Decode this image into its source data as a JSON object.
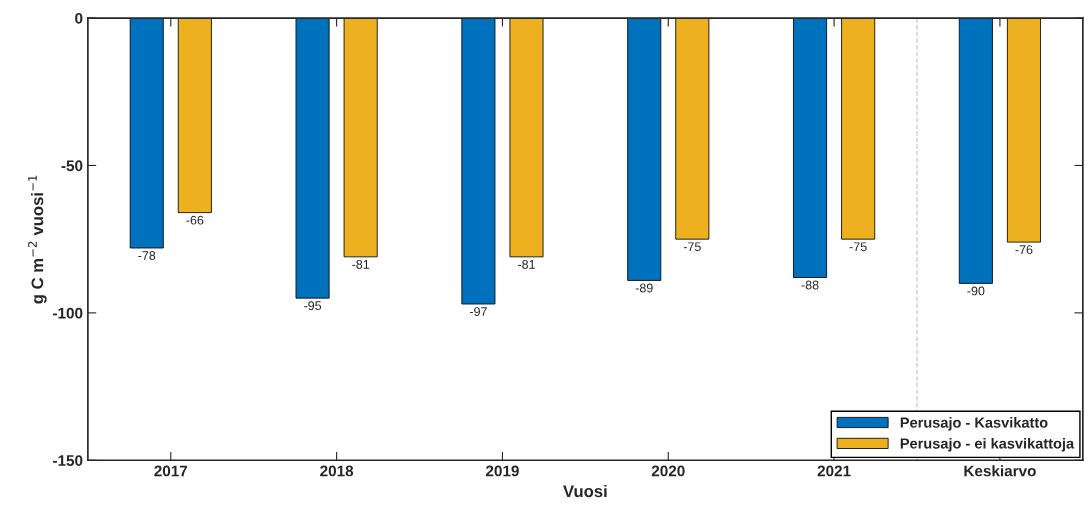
{
  "chart_data": {
    "type": "bar",
    "xlabel": "Vuosi",
    "ylabel": "g C m$^{−2}$ vuosi$^{−1}$",
    "categories": [
      "2017",
      "2018",
      "2019",
      "2020",
      "2021",
      "Keskiarvo"
    ],
    "series": [
      {
        "name": "Perusajo - Kasvikatto",
        "color": "#0072bd",
        "values": [
          -78,
          -95,
          -97,
          -89,
          -88,
          -90
        ]
      },
      {
        "name": "Perusajo - ei kasvikattoja",
        "color": "#edb120",
        "values": [
          -66,
          -81,
          -81,
          -75,
          -75,
          -76
        ]
      }
    ],
    "ylim": [
      -150,
      0
    ],
    "yticks": [
      -150,
      -100,
      -50,
      0
    ],
    "data_labels": true,
    "legend": "bottom right",
    "grid": false
  }
}
